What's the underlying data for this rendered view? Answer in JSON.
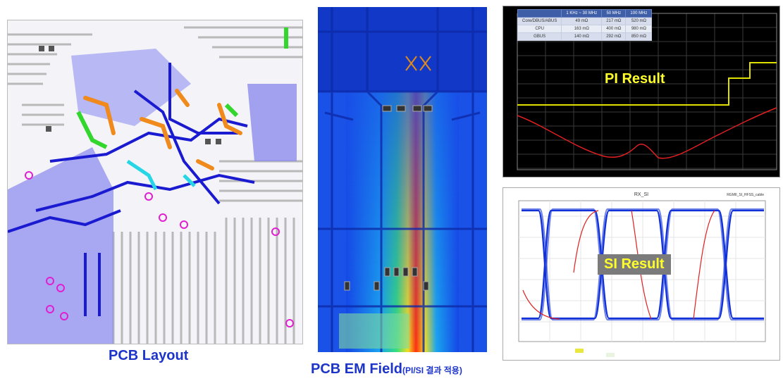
{
  "captions": {
    "pcb_layout": "PCB Layout",
    "em_field": "PCB EM Field",
    "em_field_note": "(PI/SI 결과 적용)"
  },
  "pi_result": {
    "label": "PI Result",
    "table": {
      "headers": [
        "",
        "1 KHz ~ 30 MHz",
        "50 MHz",
        "100 MHz"
      ],
      "rows": [
        [
          "Core/DBUS/ABUS",
          "49 mΩ",
          "217 mΩ",
          "520 mΩ"
        ],
        [
          "CPU",
          "163 mΩ",
          "400 mΩ",
          "980 mΩ"
        ],
        [
          "GBUS",
          "140 mΩ",
          "292 mΩ",
          "850 mΩ"
        ]
      ]
    }
  },
  "si_result": {
    "label": "SI Result",
    "title": "RX_SI",
    "legend": "RGMII_SI_HFSS_cable"
  },
  "colors": {
    "caption": "#1d34c9",
    "result_text": "#ffff2a",
    "pi_limit": "#e0e000",
    "pi_curve": "#e02020",
    "eye_trace": "#1030d8",
    "eye_accent": "#e02020"
  }
}
